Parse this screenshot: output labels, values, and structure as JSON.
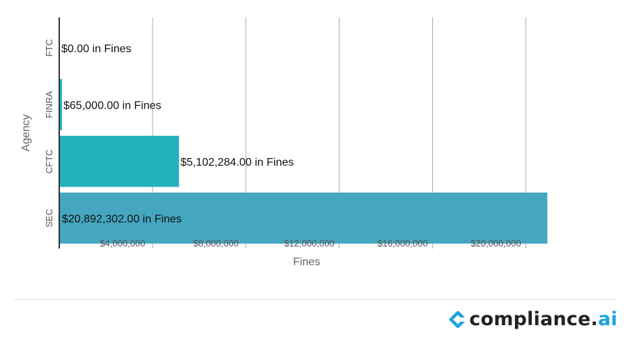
{
  "chart_data": {
    "type": "bar",
    "orientation": "horizontal",
    "categories": [
      "FTC",
      "FINRA",
      "CFTC",
      "SEC"
    ],
    "values": [
      0,
      65000,
      5102284,
      20892302
    ],
    "data_labels": [
      "$0.00 in Fines",
      "$65,000.00 in Fines",
      "$5,102,284.00 in Fines",
      "$20,892,302.00 in Fines"
    ],
    "colors": [
      "#25b3c4",
      "#25b3c4",
      "#22b2bc",
      "#45a6c0"
    ],
    "xlabel": "Fines",
    "ylabel": "Agency",
    "xticks": [
      4000000,
      8000000,
      12000000,
      16000000,
      20000000
    ],
    "xtick_labels": [
      "$4,000,000",
      "$8,000,000",
      "$12,000,000",
      "$16,000,000",
      "$20,000,000"
    ],
    "xlim": [
      0,
      23000000
    ],
    "grid": "vertical"
  },
  "logo": {
    "icon": "compliance-ai-chevron-icon",
    "name": "compliance",
    "dot": ".",
    "accent": "ai",
    "accent_color": "#1aa3e0"
  }
}
